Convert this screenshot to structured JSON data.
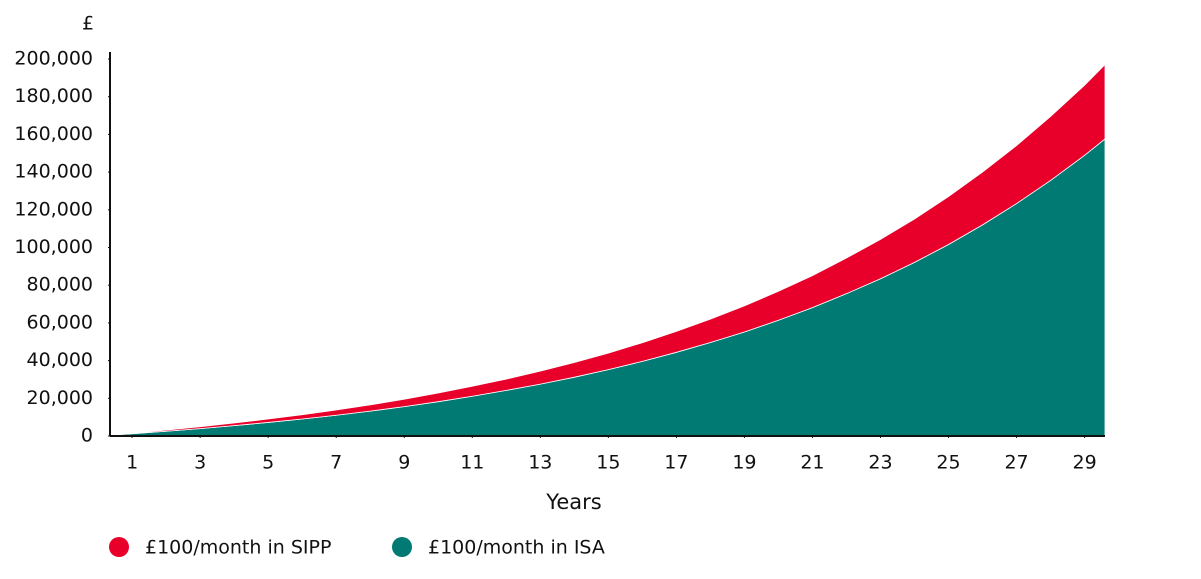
{
  "chart_data": {
    "type": "stacked-area",
    "ylabel": "£",
    "xlabel": "Years",
    "x": [
      0.4,
      1,
      2,
      3,
      4,
      5,
      6,
      7,
      8,
      9,
      10,
      11,
      12,
      13,
      14,
      15,
      16,
      17,
      18,
      19,
      20,
      21,
      22,
      23,
      24,
      25,
      26,
      27,
      28,
      29,
      29.6
    ],
    "xlim": [
      0.35,
      29.6
    ],
    "xticks": [
      1,
      3,
      5,
      7,
      9,
      11,
      13,
      15,
      17,
      19,
      21,
      23,
      25,
      27,
      29
    ],
    "ylim": [
      0,
      200000
    ],
    "yticks": [
      0,
      {
        "value": 20000,
        "label": "20,000"
      },
      {
        "value": 40000,
        "label": "40,000"
      },
      {
        "value": 60000,
        "label": "60,000"
      },
      {
        "value": 80000,
        "label": "80,000"
      },
      {
        "value": 100000,
        "label": "100,000"
      },
      {
        "value": 120000,
        "label": "120,000"
      },
      {
        "value": 140000,
        "label": "140,000"
      },
      {
        "value": 160000,
        "label": "160,000"
      },
      {
        "value": 180000,
        "label": "180,000"
      },
      {
        "value": 200000,
        "label": "200,000"
      }
    ],
    "series": [
      {
        "name": "£100/month in SIPP",
        "color": "#e8002a",
        "values": [
          100,
          300,
          600,
          1000,
          1400,
          1800,
          2300,
          2800,
          3300,
          3900,
          4600,
          5300,
          6000,
          6900,
          7800,
          8800,
          9900,
          11100,
          12400,
          13800,
          15400,
          17000,
          18900,
          20900,
          23000,
          25400,
          28000,
          30800,
          33900,
          37200,
          39400
        ]
      },
      {
        "name": "£100/month in ISA",
        "color": "#007a72",
        "values": [
          500,
          1200,
          2500,
          3900,
          5500,
          7200,
          9000,
          11000,
          13200,
          15600,
          18200,
          21100,
          24200,
          27500,
          31200,
          35200,
          39600,
          44400,
          49600,
          55200,
          61400,
          68100,
          75500,
          83400,
          92100,
          101600,
          112000,
          123300,
          135600,
          148900,
          157600
        ]
      }
    ]
  }
}
